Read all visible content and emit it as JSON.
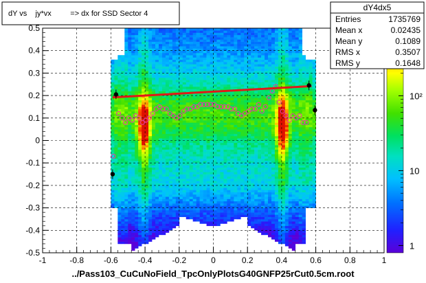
{
  "chart_data": {
    "type": "heatmap",
    "title": "dY vs    jy*vx         => dx for SSD Sector 4",
    "xlabel": "../Pass103_CuCuNoField_TpcOnlyPlotsG40GNFP25rCut0.5cm.root",
    "ylabel": "",
    "xlim": [
      -1,
      1
    ],
    "ylim": [
      -0.5,
      0.5
    ],
    "x_ticks": [
      -1,
      -0.8,
      -0.6,
      -0.4,
      -0.2,
      0,
      0.2,
      0.4,
      0.6,
      0.8,
      1
    ],
    "x_tick_labels": [
      "-1",
      "-0.8",
      "-0.6",
      "-0.4",
      "-0.2",
      "0",
      "0.2",
      "0.4",
      "0.6",
      "0.8",
      "1"
    ],
    "y_ticks": [
      -0.5,
      -0.4,
      -0.3,
      -0.2,
      -0.1,
      0,
      0.1,
      0.2,
      0.3,
      0.4,
      0.5
    ],
    "y_tick_labels": [
      "-0.5",
      "-0.4",
      "-0.3",
      "-0.2",
      "-0.1",
      "0",
      "0.1",
      "0.2",
      "0.3",
      "0.4",
      "0.5"
    ],
    "grid": true,
    "colorbar": {
      "scale": "log",
      "min": 0.8,
      "max": 800,
      "tick_labels": [
        "1",
        "10",
        "10²"
      ],
      "tick_values": [
        1,
        10,
        100
      ]
    },
    "stats_box": {
      "title": "dY4dx5",
      "rows": [
        {
          "label": "Entries",
          "value": "1735769"
        },
        {
          "label": "Mean x",
          "value": "0.02435"
        },
        {
          "label": "Mean y",
          "value": "0.1089"
        },
        {
          "label": "RMS x",
          "value": "0.3507"
        },
        {
          "label": "RMS y",
          "value": "0.1648"
        }
      ]
    },
    "profile_points": [
      {
        "x": -0.555,
        "y": 0.12
      },
      {
        "x": -0.535,
        "y": 0.1
      },
      {
        "x": -0.515,
        "y": 0.08
      },
      {
        "x": -0.495,
        "y": 0.1
      },
      {
        "x": -0.475,
        "y": 0.09
      },
      {
        "x": -0.455,
        "y": 0.11
      },
      {
        "x": -0.435,
        "y": 0.1
      },
      {
        "x": -0.415,
        "y": 0.08
      },
      {
        "x": -0.395,
        "y": 0.09
      },
      {
        "x": -0.375,
        "y": 0.1
      },
      {
        "x": -0.355,
        "y": 0.12
      },
      {
        "x": -0.335,
        "y": 0.14
      },
      {
        "x": -0.315,
        "y": 0.15
      },
      {
        "x": -0.295,
        "y": 0.14
      },
      {
        "x": -0.275,
        "y": 0.14
      },
      {
        "x": -0.255,
        "y": 0.12
      },
      {
        "x": -0.235,
        "y": 0.11
      },
      {
        "x": -0.215,
        "y": 0.1
      },
      {
        "x": -0.195,
        "y": 0.11
      },
      {
        "x": -0.175,
        "y": 0.13
      },
      {
        "x": -0.155,
        "y": 0.14
      },
      {
        "x": -0.135,
        "y": 0.14
      },
      {
        "x": -0.115,
        "y": 0.15
      },
      {
        "x": -0.095,
        "y": 0.15
      },
      {
        "x": -0.075,
        "y": 0.16
      },
      {
        "x": -0.055,
        "y": 0.16
      },
      {
        "x": -0.035,
        "y": 0.16
      },
      {
        "x": -0.015,
        "y": 0.16
      },
      {
        "x": 0.005,
        "y": 0.16
      },
      {
        "x": 0.025,
        "y": 0.15
      },
      {
        "x": 0.045,
        "y": 0.15
      },
      {
        "x": 0.065,
        "y": 0.15
      },
      {
        "x": 0.085,
        "y": 0.15
      },
      {
        "x": 0.105,
        "y": 0.14
      },
      {
        "x": 0.125,
        "y": 0.14
      },
      {
        "x": 0.145,
        "y": 0.12
      },
      {
        "x": 0.165,
        "y": 0.11
      },
      {
        "x": 0.185,
        "y": 0.12
      },
      {
        "x": 0.205,
        "y": 0.13
      },
      {
        "x": 0.225,
        "y": 0.14
      },
      {
        "x": 0.245,
        "y": 0.14
      },
      {
        "x": 0.265,
        "y": 0.16
      },
      {
        "x": 0.285,
        "y": 0.13
      },
      {
        "x": 0.305,
        "y": 0.15
      },
      {
        "x": 0.325,
        "y": 0.19
      },
      {
        "x": 0.345,
        "y": 0.22
      },
      {
        "x": 0.365,
        "y": 0.24
      },
      {
        "x": 0.385,
        "y": 0.17
      },
      {
        "x": 0.405,
        "y": 0.13
      },
      {
        "x": 0.425,
        "y": 0.11
      },
      {
        "x": 0.445,
        "y": 0.09
      },
      {
        "x": 0.465,
        "y": 0.11
      },
      {
        "x": 0.485,
        "y": 0.1
      },
      {
        "x": 0.505,
        "y": 0.11
      },
      {
        "x": 0.525,
        "y": 0.08
      },
      {
        "x": 0.545,
        "y": 0.08
      },
      {
        "x": -0.585,
        "y": -0.07
      }
    ],
    "fit_line": {
      "x1": -0.59,
      "y1": 0.192,
      "x2": 0.575,
      "y2": 0.242
    },
    "edge_points": [
      {
        "x": -0.57,
        "y": 0.205
      },
      {
        "x": 0.56,
        "y": 0.245
      },
      {
        "x": 0.595,
        "y": 0.135
      },
      {
        "x": -0.59,
        "y": -0.15
      }
    ]
  }
}
